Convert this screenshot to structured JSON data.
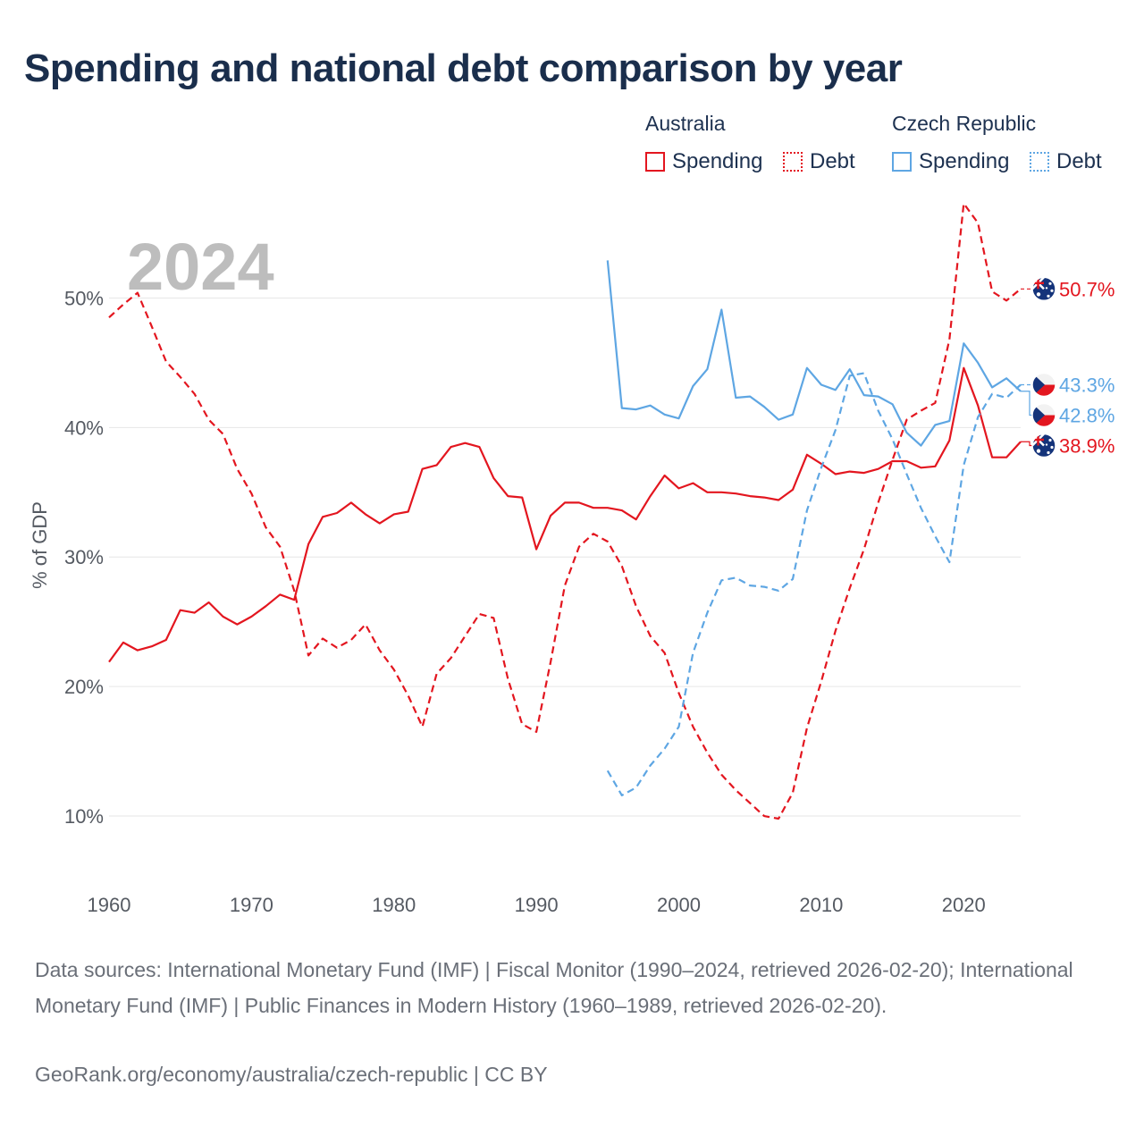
{
  "title": "Spending and national debt comparison by year",
  "legend": {
    "groups": [
      {
        "country": "Australia",
        "spending_label": "Spending",
        "debt_label": "Debt",
        "color": "#e3161f"
      },
      {
        "country": "Czech Republic",
        "spending_label": "Spending",
        "debt_label": "Debt",
        "color": "#5ea6e3"
      }
    ]
  },
  "footer": {
    "sources": "Data sources: International Monetary Fund (IMF) | Fiscal Monitor (1990–2024, retrieved 2026-02-20); International Monetary Fund (IMF) | Public Finances in Modern History (1960–1989, retrieved 2026-02-20).",
    "credit": "GeoRank.org/economy/australia/czech-republic | CC BY"
  },
  "chart_data": {
    "type": "line",
    "year_label": "2024",
    "ylabel": "% of GDP",
    "xlim": [
      1960,
      2024
    ],
    "ylim": [
      4,
      57
    ],
    "x_ticks": [
      1960,
      1970,
      1980,
      1990,
      2000,
      2010,
      2020
    ],
    "y_ticks": [
      {
        "value": 10,
        "label": "10%"
      },
      {
        "value": 20,
        "label": "20%"
      },
      {
        "value": 30,
        "label": "30%"
      },
      {
        "value": 40,
        "label": "40%"
      },
      {
        "value": 50,
        "label": "50%"
      }
    ],
    "series": [
      {
        "name": "Australia Debt",
        "country": "Australia",
        "kind": "Debt",
        "color": "#e3161f",
        "dashed": true,
        "start": 1960,
        "end_label": "50.7%",
        "values": [
          48.5,
          49.5,
          50.4,
          47.8,
          45.1,
          43.9,
          42.6,
          40.6,
          39.5,
          36.8,
          34.9,
          32.3,
          30.8,
          27.4,
          22.4,
          23.7,
          23.0,
          23.6,
          24.8,
          22.8,
          21.3,
          19.3,
          16.9,
          21.0,
          22.2,
          23.9,
          25.6,
          25.3,
          20.6,
          17.1,
          16.5,
          21.9,
          27.8,
          30.8,
          31.8,
          31.2,
          29.3,
          26.2,
          23.9,
          22.6,
          19.5,
          16.9,
          14.9,
          13.2,
          12.0,
          11.0,
          10.0,
          9.8,
          11.8,
          16.8,
          20.4,
          24.3,
          27.6,
          30.6,
          34.2,
          37.5,
          40.6,
          41.3,
          41.9,
          46.8,
          57.3,
          55.8,
          50.5,
          49.8,
          50.7
        ]
      },
      {
        "name": "Australia Spending",
        "country": "Australia",
        "kind": "Spending",
        "color": "#e3161f",
        "dashed": false,
        "start": 1960,
        "end_label": "38.9%",
        "values": [
          21.9,
          23.4,
          22.8,
          23.1,
          23.6,
          25.9,
          25.7,
          26.5,
          25.4,
          24.8,
          25.4,
          26.2,
          27.1,
          26.7,
          31.0,
          33.1,
          33.4,
          34.2,
          33.3,
          32.6,
          33.3,
          33.5,
          36.8,
          37.1,
          38.5,
          38.8,
          38.5,
          36.1,
          34.7,
          34.6,
          30.6,
          33.2,
          34.2,
          34.2,
          33.8,
          33.8,
          33.6,
          32.9,
          34.7,
          36.3,
          35.3,
          35.7,
          35.0,
          35.0,
          34.9,
          34.7,
          34.6,
          34.4,
          35.2,
          37.9,
          37.2,
          36.4,
          36.6,
          36.5,
          36.8,
          37.4,
          37.4,
          36.9,
          37.0,
          39.0,
          44.6,
          41.7,
          37.7,
          37.7,
          38.9
        ]
      },
      {
        "name": "Czech Republic Spending",
        "country": "Czech Republic",
        "kind": "Spending",
        "color": "#5ea6e3",
        "dashed": false,
        "start": 1995,
        "end_label": "42.8%",
        "values": [
          52.9,
          41.5,
          41.4,
          41.7,
          41.0,
          40.7,
          43.2,
          44.5,
          49.1,
          42.3,
          42.4,
          41.6,
          40.6,
          41.0,
          44.6,
          43.3,
          42.9,
          44.5,
          42.5,
          42.4,
          41.8,
          39.6,
          38.6,
          40.2,
          40.5,
          46.5,
          45.0,
          43.1,
          43.8,
          42.8
        ]
      },
      {
        "name": "Czech Republic Debt",
        "country": "Czech Republic",
        "kind": "Debt",
        "color": "#5ea6e3",
        "dashed": true,
        "start": 1995,
        "end_label": "43.3%",
        "values": [
          13.5,
          11.6,
          12.2,
          13.9,
          15.2,
          16.9,
          22.6,
          25.7,
          28.2,
          28.4,
          27.8,
          27.7,
          27.4,
          28.3,
          33.6,
          36.9,
          39.8,
          44.0,
          44.2,
          41.3,
          39.1,
          36.4,
          33.8,
          31.6,
          29.6,
          37.1,
          40.8,
          42.6,
          42.3,
          43.3
        ]
      }
    ]
  }
}
